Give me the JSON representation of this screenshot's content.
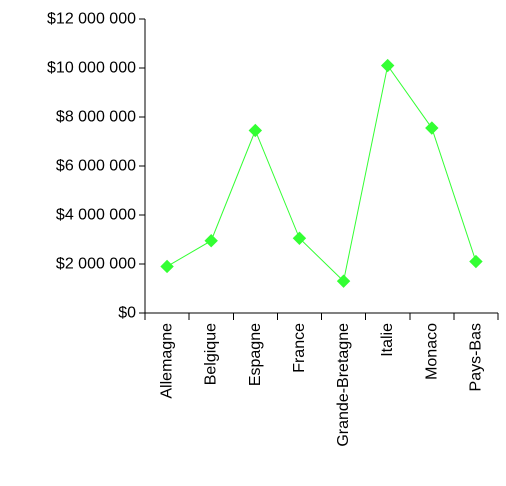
{
  "chart_data": {
    "type": "line",
    "title": "",
    "xlabel": "",
    "ylabel": "",
    "categories": [
      "Allemagne",
      "Belgique",
      "Espagne",
      "France",
      "Grande-Bretagne",
      "Italie",
      "Monaco",
      "Pays-Bas"
    ],
    "series": [
      {
        "values": [
          1900000,
          2950000,
          7450000,
          3050000,
          1300000,
          10100000,
          7550000,
          2100000
        ],
        "color": "#33ff33",
        "marker": "diamond"
      }
    ],
    "ylim": [
      0,
      12000000
    ],
    "y_ticks": [
      0,
      2000000,
      4000000,
      6000000,
      8000000,
      10000000,
      12000000
    ],
    "y_tick_labels": [
      "$0",
      "$2 000 000",
      "$4 000 000",
      "$6 000 000",
      "$8 000 000",
      "$10 000 000",
      "$12 000 000"
    ],
    "grid": false,
    "legend": "none"
  }
}
